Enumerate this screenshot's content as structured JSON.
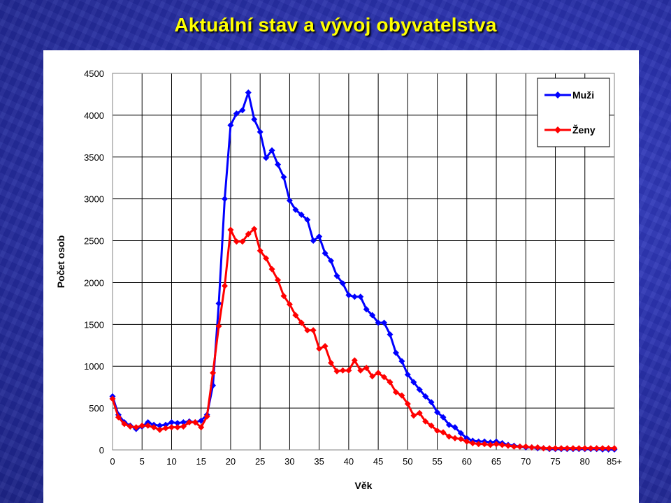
{
  "slide": {
    "title": "Aktuální stav a vývoj obyvatelstva"
  },
  "chart_data": {
    "type": "line",
    "title": "",
    "xlabel": "Věk",
    "ylabel": "Počet osob",
    "xlim": [
      0,
      85
    ],
    "ylim": [
      0,
      4500
    ],
    "grid": true,
    "legend_position": "top-right",
    "x_tick_labels": [
      "0",
      "5",
      "10",
      "15",
      "20",
      "25",
      "30",
      "35",
      "40",
      "45",
      "50",
      "55",
      "60",
      "65",
      "70",
      "75",
      "80",
      "85+"
    ],
    "y_tick_labels": [
      "0",
      "500",
      "1000",
      "1500",
      "2000",
      "2500",
      "3000",
      "3500",
      "4000",
      "4500"
    ],
    "x": [
      0,
      1,
      2,
      3,
      4,
      5,
      6,
      7,
      8,
      9,
      10,
      11,
      12,
      13,
      14,
      15,
      16,
      17,
      18,
      19,
      20,
      21,
      22,
      23,
      24,
      25,
      26,
      27,
      28,
      29,
      30,
      31,
      32,
      33,
      34,
      35,
      36,
      37,
      38,
      39,
      40,
      41,
      42,
      43,
      44,
      45,
      46,
      47,
      48,
      49,
      50,
      51,
      52,
      53,
      54,
      55,
      56,
      57,
      58,
      59,
      60,
      61,
      62,
      63,
      64,
      65,
      66,
      67,
      68,
      69,
      70,
      71,
      72,
      73,
      74,
      75,
      76,
      77,
      78,
      79,
      80,
      81,
      82,
      83,
      84,
      85
    ],
    "series": [
      {
        "name": "Muži",
        "color": "#0000ff",
        "values": [
          640,
          420,
          330,
          290,
          250,
          280,
          330,
          300,
          290,
          300,
          330,
          320,
          330,
          340,
          330,
          350,
          420,
          770,
          1750,
          3000,
          3880,
          4020,
          4060,
          4270,
          3950,
          3800,
          3490,
          3580,
          3410,
          3260,
          2980,
          2870,
          2810,
          2750,
          2500,
          2550,
          2350,
          2260,
          2080,
          1990,
          1850,
          1830,
          1830,
          1680,
          1610,
          1520,
          1520,
          1380,
          1160,
          1060,
          900,
          810,
          720,
          640,
          570,
          450,
          390,
          300,
          270,
          200,
          140,
          110,
          100,
          100,
          90,
          100,
          80,
          60,
          50,
          40,
          30,
          30,
          20,
          20,
          10,
          10,
          10,
          10,
          10,
          10,
          10,
          10,
          10,
          5,
          5,
          5
        ]
      },
      {
        "name": "Ženy",
        "color": "#ff0000",
        "values": [
          610,
          390,
          310,
          280,
          270,
          290,
          290,
          270,
          240,
          260,
          270,
          270,
          280,
          330,
          330,
          270,
          400,
          920,
          1480,
          1960,
          2630,
          2490,
          2490,
          2580,
          2640,
          2380,
          2290,
          2160,
          2030,
          1840,
          1740,
          1610,
          1520,
          1430,
          1430,
          1210,
          1240,
          1040,
          940,
          950,
          950,
          1070,
          950,
          980,
          880,
          920,
          870,
          810,
          690,
          650,
          550,
          410,
          440,
          340,
          290,
          230,
          210,
          160,
          140,
          130,
          100,
          80,
          70,
          70,
          60,
          70,
          60,
          50,
          40,
          40,
          40,
          30,
          30,
          20,
          20,
          20,
          20,
          20,
          20,
          20,
          20,
          20,
          20,
          20,
          20,
          20
        ]
      }
    ]
  }
}
